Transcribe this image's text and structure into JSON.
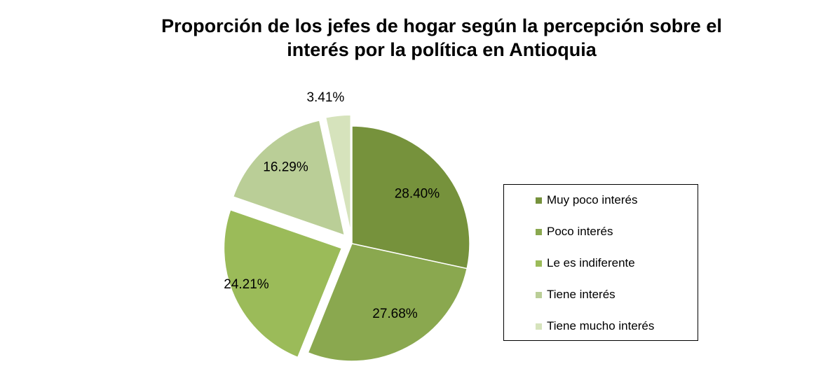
{
  "chart_data": {
    "type": "pie",
    "title_lines": [
      "Proporción de los jefes de hogar  según la percepción  sobre el",
      "interés por la política en Antioquia"
    ],
    "categories": [
      "Muy poco interés",
      "Poco interés",
      "Le es indiferente",
      "Tiene interés",
      "Tiene mucho interés"
    ],
    "values": [
      28.4,
      27.68,
      24.21,
      16.29,
      3.41
    ],
    "labels": [
      "28.40%",
      "27.68%",
      "24.21%",
      "16.29%",
      "3.41%"
    ],
    "colors": [
      "#76923C",
      "#8AA84F",
      "#9BBB59",
      "#BACE97",
      "#D6E3BC"
    ],
    "exploded": [
      false,
      false,
      true,
      true,
      true
    ],
    "legend_position": "right"
  }
}
